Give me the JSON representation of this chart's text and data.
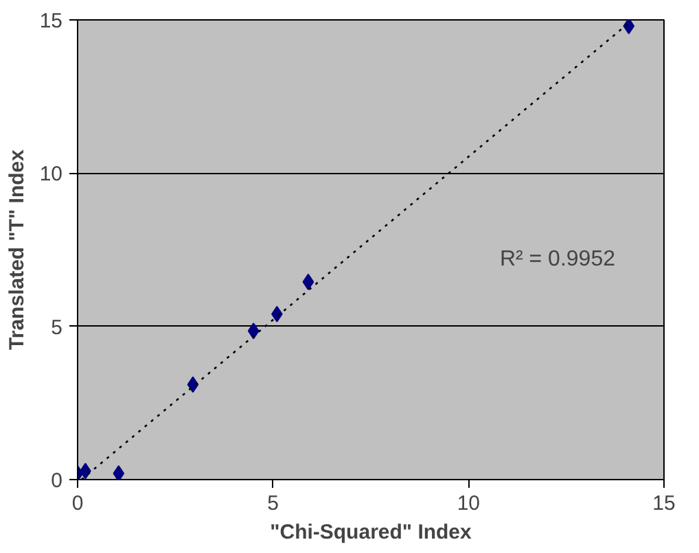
{
  "chart_data": {
    "type": "scatter",
    "xlabel": "\"Chi-Squared\" Index",
    "ylabel": "Translated \"T\" Index",
    "annotations": [
      "R² = 0.9952"
    ],
    "xlim": [
      0,
      15
    ],
    "ylim": [
      0,
      15
    ],
    "xticks": [
      0,
      5,
      10,
      15
    ],
    "yticks": [
      0,
      5,
      10,
      15
    ],
    "grid": "y",
    "series": [
      {
        "color": "#000080",
        "marker": "diamond",
        "x": [
          0.0,
          0.2,
          1.05,
          2.95,
          4.5,
          5.1,
          5.9,
          14.1
        ],
        "values": [
          0.2,
          0.28,
          0.2,
          3.1,
          4.85,
          5.4,
          6.45,
          14.8
        ]
      },
      {
        "type": "line",
        "color": "#000000",
        "line_style": "dotted",
        "x": [
          0.1,
          14.1
        ],
        "values": [
          0.0,
          14.9
        ]
      }
    ]
  }
}
